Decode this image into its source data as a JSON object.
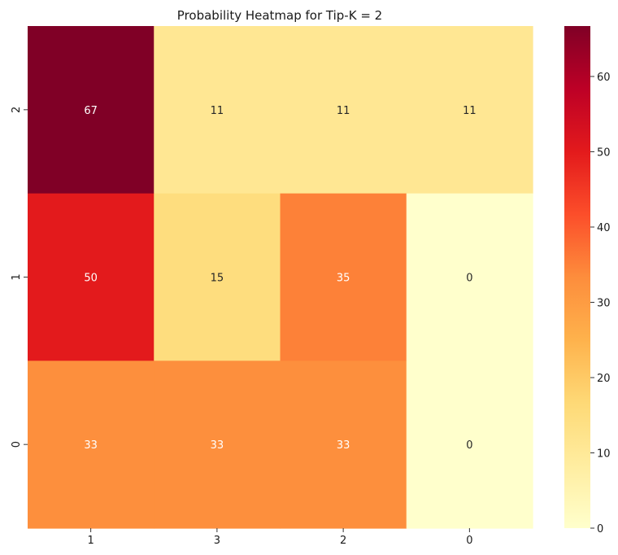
{
  "chart_data": {
    "type": "heatmap",
    "title": "Probability Heatmap for Tip-K = 2",
    "xlabel": "",
    "ylabel": "",
    "x_categories": [
      "1",
      "3",
      "2",
      "0"
    ],
    "y_categories": [
      "2",
      "1",
      "0"
    ],
    "values": [
      [
        67,
        11,
        11,
        11
      ],
      [
        50,
        15,
        35,
        0
      ],
      [
        33,
        33,
        33,
        0
      ]
    ],
    "labels": [
      [
        "67",
        "11",
        "11",
        "11"
      ],
      [
        "50",
        "15",
        "35",
        "0"
      ],
      [
        "33",
        "33",
        "33",
        "0"
      ]
    ],
    "color_range": [
      0,
      66.7
    ],
    "colormap": "YlOrRd",
    "colorbar_ticks": [
      "0",
      "10",
      "20",
      "30",
      "40",
      "50",
      "60"
    ],
    "colorbar_tick_values": [
      0,
      10,
      20,
      30,
      40,
      50,
      60
    ],
    "grid": false,
    "colorbar_placement": "right"
  }
}
